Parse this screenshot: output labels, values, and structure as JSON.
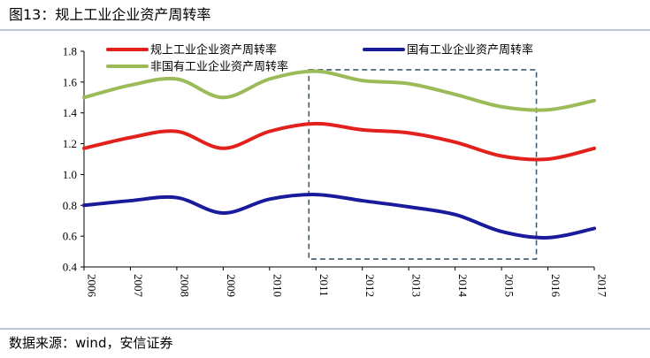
{
  "figure": {
    "title": "图13：规上工业企业资产周转率",
    "source": "数据来源：wind，安信证券"
  },
  "colors": {
    "series_1": "#e3211c",
    "series_2": "#1a1a9c",
    "series_3": "#9bbb59",
    "highlight_box": "#3f5a6b",
    "rule": "#b8c7d9"
  },
  "chart_data": {
    "type": "line",
    "title": "规上工业企业资产周转率",
    "xlabel": "",
    "ylabel": "",
    "x": [
      "2006",
      "2007",
      "2008",
      "2009",
      "2010",
      "2011",
      "2012",
      "2013",
      "2014",
      "2015",
      "2016",
      "2017"
    ],
    "ylim": [
      0.4,
      1.8
    ],
    "yticks": [
      "0.4",
      "0.6",
      "0.8",
      "1.0",
      "1.2",
      "1.4",
      "1.6",
      "1.8"
    ],
    "grid": false,
    "legend_position": "top",
    "series": [
      {
        "name": "规上工业企业资产周转率",
        "values": [
          1.17,
          1.24,
          1.28,
          1.17,
          1.28,
          1.33,
          1.29,
          1.27,
          1.21,
          1.12,
          1.1,
          1.17
        ]
      },
      {
        "name": "国有工业企业资产周转率",
        "values": [
          0.8,
          0.83,
          0.85,
          0.75,
          0.84,
          0.87,
          0.83,
          0.79,
          0.74,
          0.63,
          0.59,
          0.65
        ]
      },
      {
        "name": "非国有工业企业资产周转率",
        "values": [
          1.5,
          1.58,
          1.62,
          1.5,
          1.62,
          1.67,
          1.61,
          1.59,
          1.52,
          1.44,
          1.42,
          1.48
        ]
      }
    ],
    "highlight_region": {
      "x_start": "2011",
      "x_end": "2016",
      "y_start": 0.44,
      "y_end": 1.68,
      "style": "dashed"
    }
  }
}
